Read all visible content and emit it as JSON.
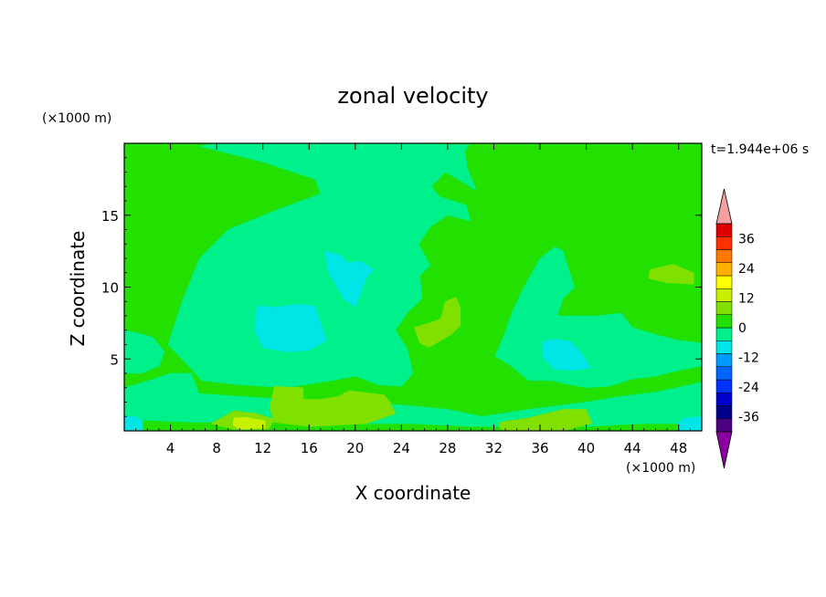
{
  "chart_data": {
    "type": "heatmap",
    "title": "zonal velocity",
    "xlabel": "X coordinate",
    "ylabel": "Z coordinate",
    "x_unit": "(×1000 m)",
    "y_unit": "(×1000 m)",
    "time_label": "t=1.944e+06 s",
    "xlim": [
      0,
      50
    ],
    "ylim": [
      0,
      20
    ],
    "x_ticks": [
      4,
      8,
      12,
      16,
      20,
      24,
      28,
      32,
      36,
      40,
      44,
      48
    ],
    "y_ticks": [
      5,
      10,
      15
    ],
    "colorbar": {
      "ticks": [
        36,
        24,
        12,
        0,
        -12,
        -24,
        -36
      ],
      "levels": [
        -42,
        -36,
        -30,
        -24,
        -18,
        -12,
        -6,
        0,
        6,
        12,
        18,
        24,
        30,
        36,
        42
      ],
      "colors": [
        "#4b0082",
        "#00008b",
        "#0000cd",
        "#0033ff",
        "#0066ff",
        "#0099ff",
        "#00e5e5",
        "#00f08c",
        "#22e000",
        "#80e000",
        "#c8f000",
        "#ffff00",
        "#ffb000",
        "#ff7800",
        "#ff3000",
        "#e00000"
      ],
      "under_color": "#8b00a0",
      "over_color": "#f4a0a0"
    },
    "regions": [
      {
        "level": "0 to 6",
        "color": "#22e000",
        "points": [
          [
            0,
            0
          ],
          [
            50,
            0
          ],
          [
            50,
            20
          ],
          [
            0,
            20
          ]
        ]
      },
      {
        "level": "-6 to 0",
        "color": "#00f08c",
        "points": [
          [
            6.5,
            19.8
          ],
          [
            12,
            18.7
          ],
          [
            16.5,
            17.5
          ],
          [
            17,
            16.5
          ],
          [
            13,
            15.3
          ],
          [
            9,
            14
          ],
          [
            6.5,
            12
          ],
          [
            5,
            9
          ],
          [
            3.8,
            6
          ],
          [
            5.8,
            4.3
          ],
          [
            6.7,
            3.5
          ],
          [
            10,
            3.2
          ],
          [
            14,
            3
          ],
          [
            18,
            3.5
          ],
          [
            20,
            3.8
          ],
          [
            22,
            3.2
          ],
          [
            24,
            3.1
          ],
          [
            25,
            4
          ],
          [
            24.5,
            5.7
          ],
          [
            23.5,
            7
          ],
          [
            24.5,
            8.2
          ],
          [
            25.8,
            9.2
          ],
          [
            25.6,
            10.8
          ],
          [
            26.5,
            11.5
          ],
          [
            25.5,
            13
          ],
          [
            26.5,
            14.2
          ],
          [
            28,
            15
          ],
          [
            30,
            14.6
          ],
          [
            29.6,
            15.7
          ],
          [
            27.3,
            16.3
          ],
          [
            26.6,
            17
          ],
          [
            27.8,
            18
          ],
          [
            29.3,
            17.3
          ],
          [
            30.5,
            16.7
          ],
          [
            29.7,
            18.3
          ],
          [
            29.5,
            19.5
          ],
          [
            29.9,
            19.9
          ],
          [
            22,
            20
          ],
          [
            15,
            20
          ],
          [
            8,
            20
          ]
        ]
      },
      {
        "level": "-6 to 0",
        "color": "#00f08c",
        "points": [
          [
            5.8,
            4
          ],
          [
            6.5,
            2.6
          ],
          [
            10,
            2.4
          ],
          [
            14,
            2.2
          ],
          [
            16,
            2
          ],
          [
            20,
            2
          ],
          [
            24,
            1.8
          ],
          [
            28,
            1.5
          ],
          [
            31,
            1
          ],
          [
            35,
            1.5
          ],
          [
            40,
            2
          ],
          [
            43,
            2.4
          ],
          [
            46,
            2.7
          ],
          [
            49,
            3.2
          ],
          [
            50,
            3.4
          ],
          [
            50,
            0.5
          ],
          [
            45,
            0.5
          ],
          [
            40,
            0.3
          ],
          [
            35,
            0.3
          ],
          [
            30,
            0.3
          ],
          [
            25,
            0.5
          ],
          [
            20,
            0.5
          ],
          [
            12,
            0.6
          ],
          [
            6,
            0.6
          ],
          [
            0,
            0.8
          ],
          [
            0,
            3
          ],
          [
            2.5,
            3.6
          ],
          [
            4,
            4
          ],
          [
            6,
            4
          ]
        ]
      },
      {
        "level": "-6 to 0",
        "color": "#00f08c",
        "points": [
          [
            32.1,
            5.2
          ],
          [
            33.5,
            4.5
          ],
          [
            35,
            3.5
          ],
          [
            37,
            3.5
          ],
          [
            38,
            3.3
          ],
          [
            40,
            3
          ],
          [
            42,
            3.1
          ],
          [
            44,
            3.6
          ],
          [
            46,
            3.8
          ],
          [
            48,
            4.2
          ],
          [
            50,
            4.5
          ],
          [
            50,
            6.1
          ],
          [
            48,
            6.3
          ],
          [
            46,
            6.7
          ],
          [
            44,
            7.2
          ],
          [
            43,
            8.2
          ],
          [
            41,
            8
          ],
          [
            39.5,
            8
          ],
          [
            37.5,
            8
          ],
          [
            38,
            9.2
          ],
          [
            39,
            10
          ],
          [
            38.5,
            11.2
          ],
          [
            38,
            12.5
          ],
          [
            37.3,
            12.8
          ],
          [
            36,
            12
          ],
          [
            34.6,
            10
          ],
          [
            33.6,
            8.3
          ],
          [
            32.8,
            6.5
          ]
        ]
      },
      {
        "level": "-6 to 0",
        "color": "#00f08c",
        "points": [
          [
            0,
            7
          ],
          [
            1.2,
            6.8
          ],
          [
            2.5,
            6.5
          ],
          [
            3.5,
            5.5
          ],
          [
            3,
            4.5
          ],
          [
            1.5,
            4
          ],
          [
            0,
            4
          ]
        ]
      },
      {
        "level": "-12 to -6",
        "color": "#00e5e5",
        "points": [
          [
            17.4,
            12.5
          ],
          [
            18.8,
            12.2
          ],
          [
            19.3,
            11.7
          ],
          [
            20.5,
            11.8
          ],
          [
            21.6,
            11.2
          ],
          [
            20.9,
            10.6
          ],
          [
            20.5,
            9.6
          ],
          [
            20,
            8.6
          ],
          [
            19,
            9.2
          ],
          [
            18.4,
            10
          ],
          [
            17.6,
            11.2
          ]
        ]
      },
      {
        "level": "-12 to -6",
        "color": "#00e5e5",
        "points": [
          [
            11.5,
            8.7
          ],
          [
            13,
            8.6
          ],
          [
            15,
            8.8
          ],
          [
            16.5,
            8.7
          ],
          [
            17,
            7.5
          ],
          [
            17.5,
            6.3
          ],
          [
            16,
            5.6
          ],
          [
            14,
            5.5
          ],
          [
            12,
            5.8
          ],
          [
            11.3,
            7
          ]
        ]
      },
      {
        "level": "-12 to -6",
        "color": "#00e5e5",
        "points": [
          [
            36.2,
            6.2
          ],
          [
            37.3,
            6.4
          ],
          [
            38.7,
            6.2
          ],
          [
            39.6,
            5.4
          ],
          [
            40.4,
            4.4
          ],
          [
            39,
            4.2
          ],
          [
            37.2,
            4.3
          ],
          [
            36.2,
            5.2
          ]
        ]
      },
      {
        "level": "-12 to -6",
        "color": "#00e5e5",
        "points": [
          [
            0,
            0
          ],
          [
            1.6,
            0
          ],
          [
            1.6,
            0.7
          ],
          [
            0.9,
            1
          ],
          [
            0,
            1
          ]
        ]
      },
      {
        "level": "-12 to -6",
        "color": "#00e5e5",
        "points": [
          [
            47.9,
            0
          ],
          [
            50,
            0
          ],
          [
            50,
            1
          ],
          [
            48.5,
            0.9
          ],
          [
            47.9,
            0.5
          ]
        ]
      },
      {
        "level": "6 to 12",
        "color": "#80e000",
        "points": [
          [
            25.1,
            7.2
          ],
          [
            26.4,
            7.5
          ],
          [
            27.4,
            7.8
          ],
          [
            27.8,
            9
          ],
          [
            28.7,
            9.3
          ],
          [
            29.1,
            8.6
          ],
          [
            29.1,
            7.3
          ],
          [
            28.3,
            6.7
          ],
          [
            26.4,
            5.8
          ],
          [
            25.6,
            6.1
          ]
        ]
      },
      {
        "level": "6 to 12",
        "color": "#80e000",
        "points": [
          [
            45.5,
            11.2
          ],
          [
            47.5,
            11.6
          ],
          [
            49.3,
            11
          ],
          [
            49.3,
            10.2
          ],
          [
            47,
            10.3
          ],
          [
            45.4,
            10.6
          ]
        ]
      },
      {
        "level": "6 to 12",
        "color": "#80e000",
        "points": [
          [
            13,
            3.1
          ],
          [
            15.5,
            3
          ],
          [
            15.5,
            2.2
          ],
          [
            17,
            2.2
          ],
          [
            18.5,
            2.4
          ],
          [
            19.5,
            2.8
          ],
          [
            21.5,
            2.6
          ],
          [
            22.5,
            2.5
          ],
          [
            23,
            2
          ],
          [
            23.5,
            1.2
          ],
          [
            21,
            0.5
          ],
          [
            16,
            0.3
          ],
          [
            13,
            0.6
          ],
          [
            12.6,
            1.6
          ]
        ]
      },
      {
        "level": "6 to 12",
        "color": "#80e000",
        "points": [
          [
            9.5,
            1.4
          ],
          [
            11.5,
            1.2
          ],
          [
            13,
            0.8
          ],
          [
            12.5,
            0.1
          ],
          [
            9.5,
            0.1
          ],
          [
            7.5,
            0.5
          ]
        ]
      },
      {
        "level": "6 to 12",
        "color": "#80e000",
        "points": [
          [
            32.5,
            0.6
          ],
          [
            35,
            0.9
          ],
          [
            38,
            1.5
          ],
          [
            40,
            1.5
          ],
          [
            40.5,
            0.5
          ],
          [
            38,
            0
          ],
          [
            33,
            0
          ],
          [
            32.5,
            0.2
          ]
        ]
      },
      {
        "level": "12 to 18",
        "color": "#c8f000",
        "points": [
          [
            9.5,
            0.9
          ],
          [
            10.5,
            0.95
          ],
          [
            12.2,
            0.7
          ],
          [
            12.2,
            0.2
          ],
          [
            10,
            0.1
          ],
          [
            9.4,
            0.4
          ]
        ]
      }
    ]
  }
}
